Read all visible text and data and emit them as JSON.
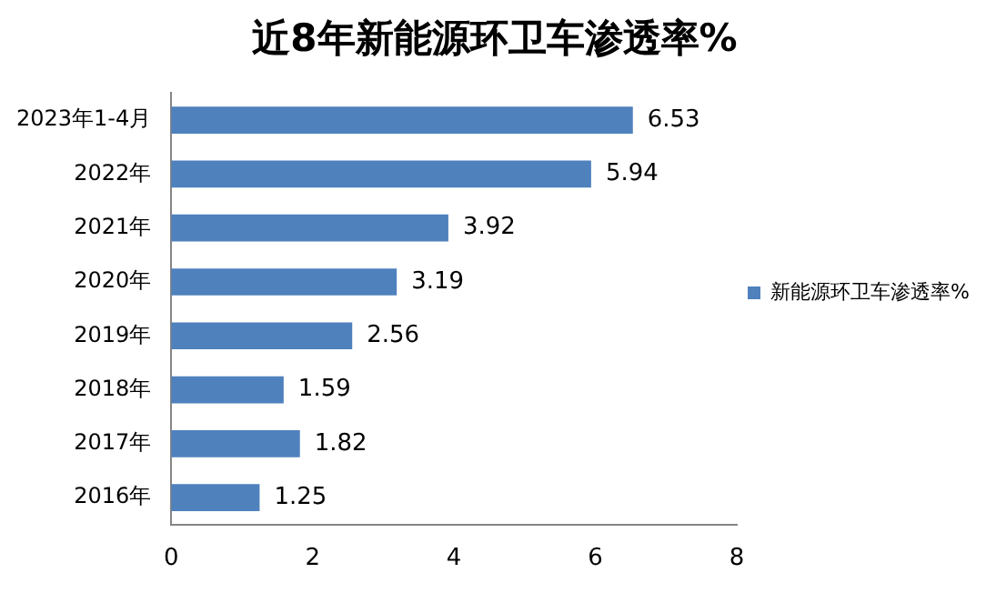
{
  "chart_data": {
    "type": "bar",
    "orientation": "horizontal",
    "title": "近8年新能源环卫车渗透率%",
    "categories": [
      "2023年1-4月",
      "2022年",
      "2021年",
      "2020年",
      "2019年",
      "2018年",
      "2017年",
      "2016年"
    ],
    "series": [
      {
        "name": "新能源环卫车渗透率%",
        "color": "#4f81bd",
        "values": [
          6.53,
          5.94,
          3.92,
          3.19,
          2.56,
          1.59,
          1.82,
          1.25
        ]
      }
    ],
    "xlim": [
      0,
      8
    ],
    "xticks": [
      0,
      2,
      4,
      6,
      8
    ],
    "grid": false,
    "legend": "right",
    "data_labels": true
  }
}
